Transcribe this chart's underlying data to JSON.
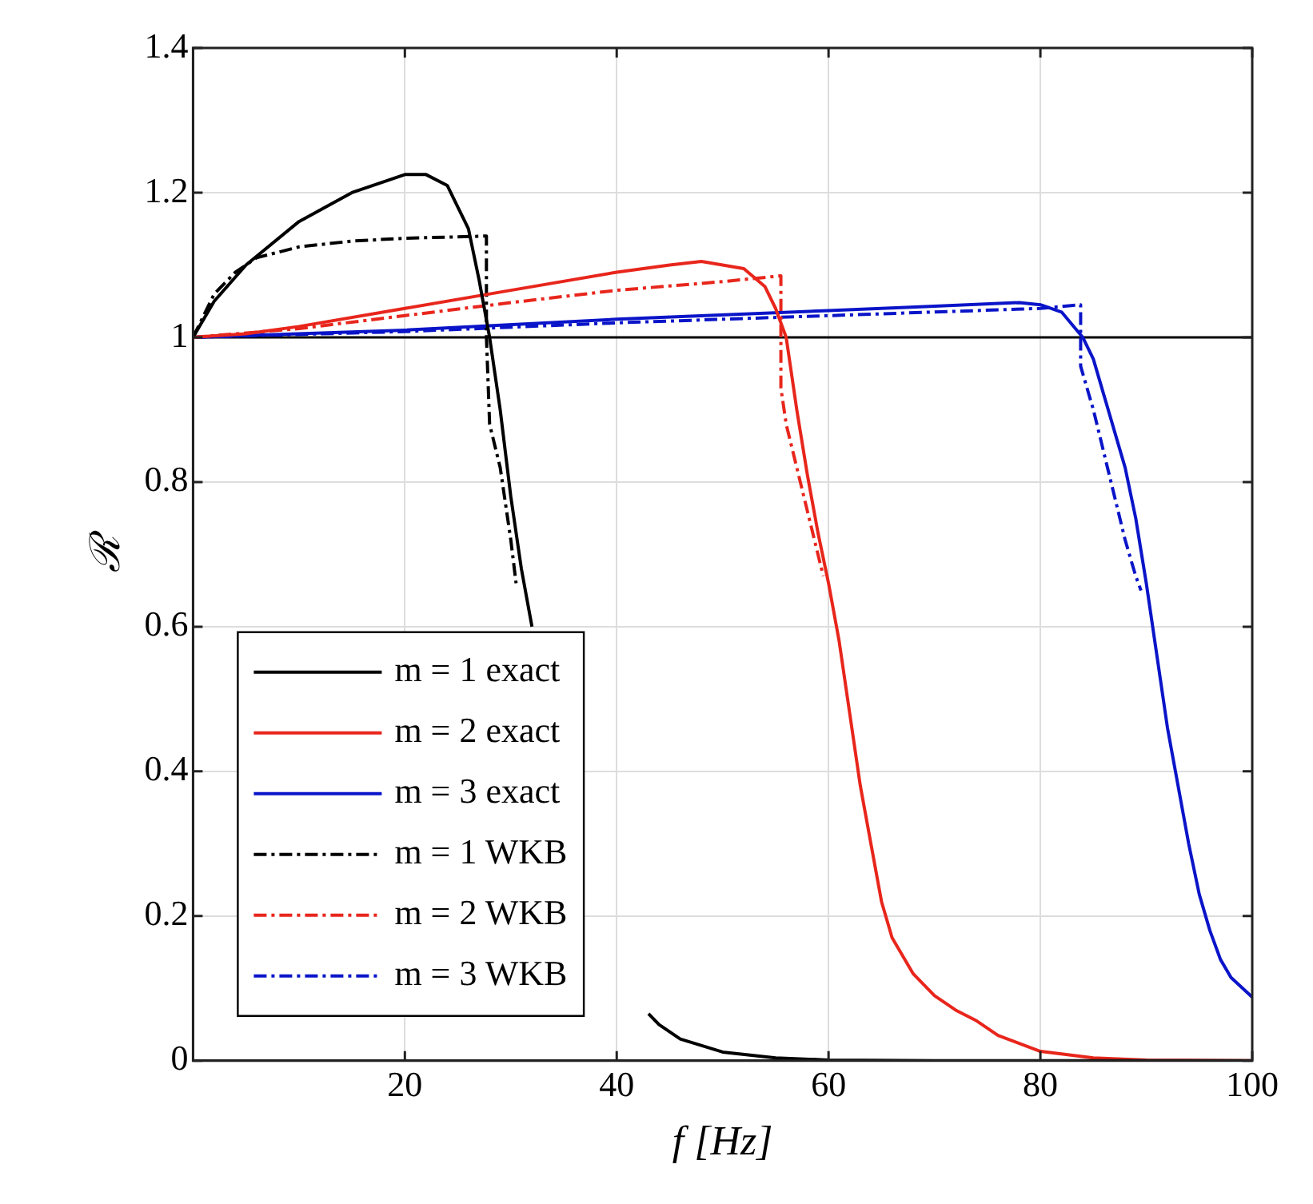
{
  "chart_data": {
    "type": "line",
    "xlabel": "f [Hz]",
    "ylabel": "ℛ",
    "xlim": [
      0,
      100
    ],
    "xticks": [
      20,
      40,
      60,
      80,
      100
    ],
    "ylim": [
      0,
      1.4
    ],
    "yticks": [
      0,
      {
        "value": 0.2,
        "label": "0.2"
      },
      {
        "value": 0.4,
        "label": "0.4"
      },
      {
        "value": 0.6,
        "label": "0.6"
      },
      {
        "value": 0.8,
        "label": "0.8"
      },
      1,
      {
        "value": 1.2,
        "label": "1.2"
      },
      {
        "value": 1.4,
        "label": "1.4"
      }
    ],
    "grid": true,
    "legend": "bottom left",
    "marker": "none",
    "ref_lines": [
      {
        "axis": "y",
        "value": 1,
        "color": "#000000"
      }
    ],
    "series": [
      {
        "name": "m = 1 exact",
        "color": "#000000",
        "line_style": "solid",
        "x": [
          0,
          2,
          5,
          10,
          15,
          20,
          22,
          24,
          26,
          27,
          28,
          29,
          30,
          31,
          32,
          34,
          36,
          38,
          40,
          43,
          44,
          46,
          50,
          55,
          60,
          70,
          80,
          90,
          100
        ],
        "values": [
          1,
          1.05,
          1.1,
          1.16,
          1.2,
          1.225,
          1.225,
          1.21,
          1.15,
          1.08,
          1.0,
          0.9,
          0.78,
          0.68,
          0.6,
          null,
          null,
          null,
          null,
          0.065,
          0.05,
          0.03,
          0.012,
          0.004,
          0.001,
          0,
          0,
          0,
          0
        ]
      },
      {
        "name": "m = 2 exact",
        "color": "#e8261c",
        "line_style": "solid",
        "x": [
          0,
          5,
          10,
          20,
          30,
          40,
          45,
          48,
          52,
          54,
          55,
          56,
          57,
          58,
          59,
          60,
          61,
          62,
          63,
          64,
          65,
          66,
          68,
          70,
          72,
          74,
          76,
          80,
          85,
          90,
          100
        ],
        "values": [
          1,
          1.005,
          1.015,
          1.04,
          1.065,
          1.09,
          1.1,
          1.105,
          1.095,
          1.07,
          1.04,
          1.0,
          0.9,
          0.81,
          0.73,
          0.66,
          0.58,
          0.48,
          0.38,
          0.3,
          0.22,
          0.17,
          0.12,
          0.09,
          0.07,
          0.055,
          0.035,
          0.013,
          0.004,
          0.001,
          0
        ]
      },
      {
        "name": "m = 3 exact",
        "color": "#0a14c8",
        "line_style": "solid",
        "x": [
          0,
          20,
          40,
          60,
          70,
          78,
          80,
          82,
          84,
          85,
          86,
          87,
          88,
          89,
          90,
          91,
          92,
          93,
          94,
          95,
          96,
          97,
          98,
          100
        ],
        "values": [
          1,
          1.01,
          1.025,
          1.037,
          1.043,
          1.048,
          1.045,
          1.035,
          1.0,
          0.97,
          0.92,
          0.87,
          0.82,
          0.75,
          0.66,
          0.56,
          0.46,
          0.38,
          0.3,
          0.23,
          0.18,
          0.14,
          0.115,
          0.088
        ]
      },
      {
        "name": "m = 1 WKB",
        "color": "#000000",
        "line_style": "dashed",
        "x": [
          0,
          2,
          4,
          6,
          10,
          15,
          20,
          27.7,
          27.7,
          28,
          29,
          30,
          30.5
        ],
        "values": [
          1,
          1.06,
          1.09,
          1.11,
          1.125,
          1.133,
          1.137,
          1.14,
          1.0,
          0.88,
          0.82,
          0.72,
          0.66
        ]
      },
      {
        "name": "m = 2 WKB",
        "color": "#e8261c",
        "line_style": "dashed",
        "x": [
          0,
          10,
          20,
          30,
          40,
          50,
          55.5,
          55.5,
          56,
          57,
          58,
          59,
          59.5
        ],
        "values": [
          1,
          1.012,
          1.03,
          1.048,
          1.065,
          1.077,
          1.085,
          0.93,
          0.88,
          0.82,
          0.76,
          0.7,
          0.67
        ]
      },
      {
        "name": "m = 3 WKB",
        "color": "#0a14c8",
        "line_style": "dashed",
        "x": [
          0,
          20,
          40,
          60,
          70,
          80,
          83.8,
          83.8,
          85,
          86,
          87,
          88,
          89,
          89.5
        ],
        "values": [
          1,
          1.008,
          1.02,
          1.03,
          1.035,
          1.04,
          1.045,
          0.96,
          0.9,
          0.84,
          0.78,
          0.72,
          0.67,
          0.65
        ]
      }
    ]
  }
}
